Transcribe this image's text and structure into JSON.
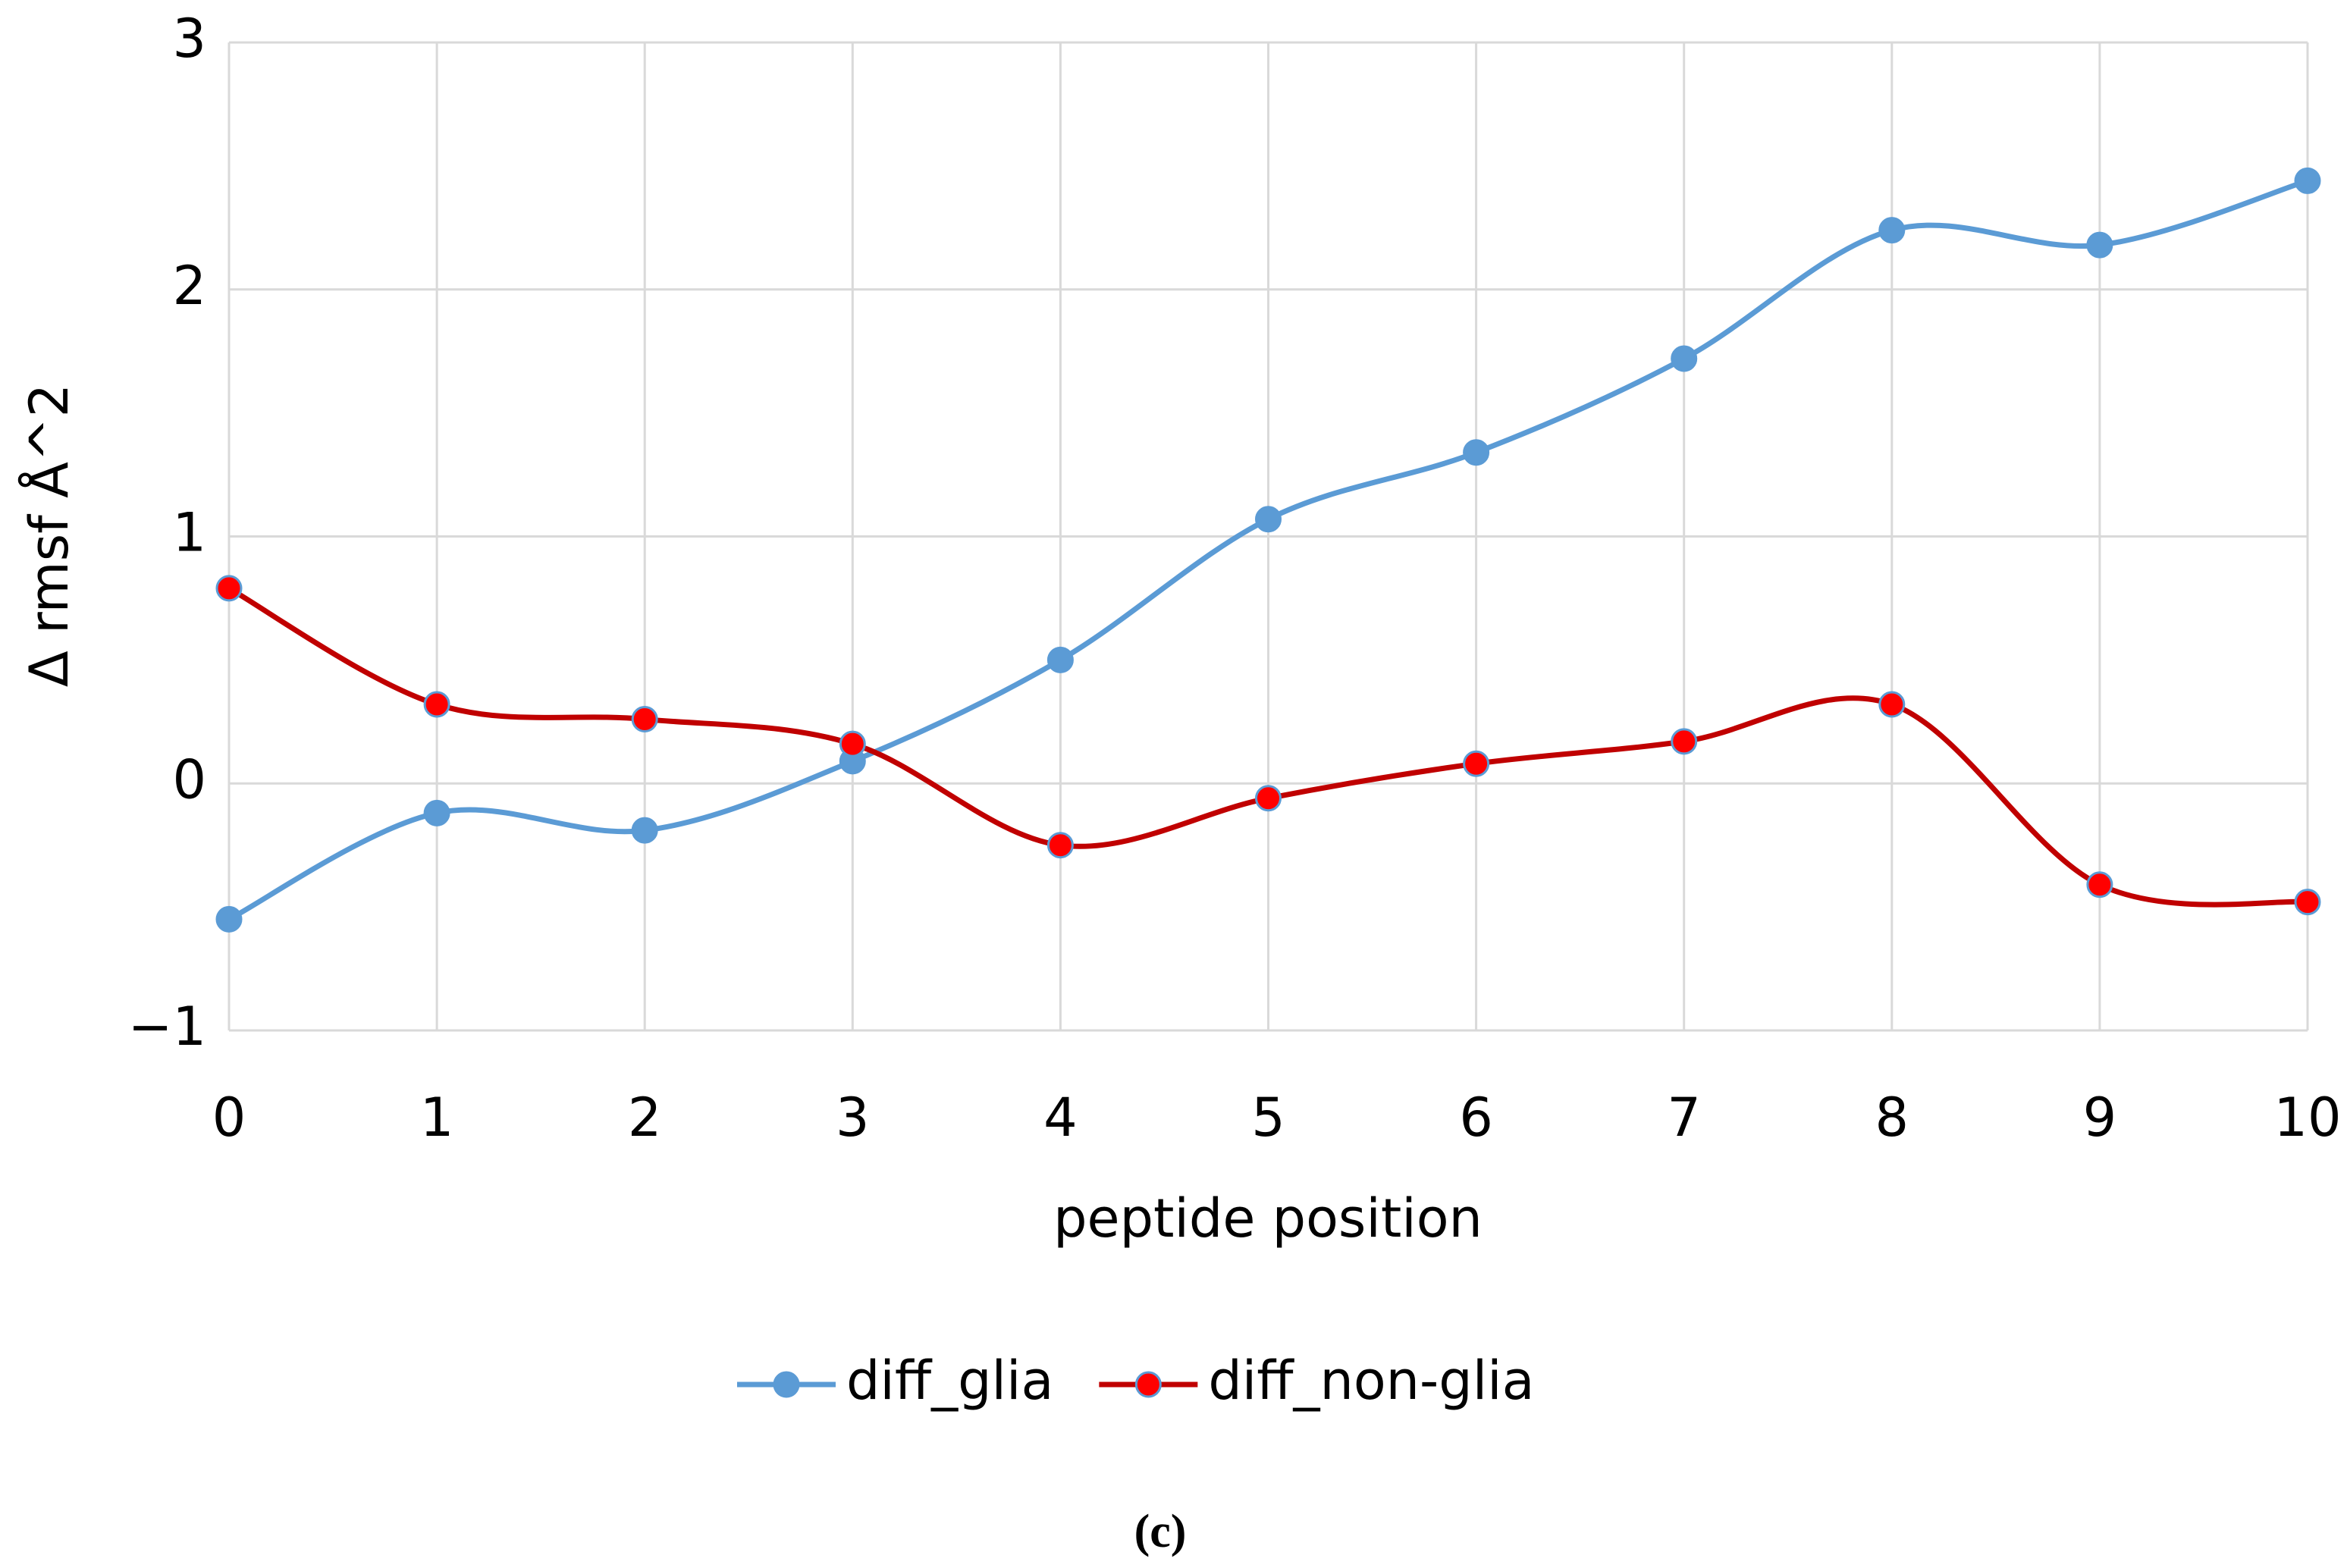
{
  "chart_data": {
    "type": "line",
    "x": [
      0,
      1,
      2,
      3,
      4,
      5,
      6,
      7,
      8,
      9,
      10
    ],
    "series": [
      {
        "name": "diff_glia",
        "color": "#5b9bd5",
        "marker_color": "#5b9bd5",
        "values": [
          -0.55,
          -0.12,
          -0.19,
          0.09,
          0.5,
          1.07,
          1.34,
          1.72,
          2.24,
          2.18,
          2.44
        ]
      },
      {
        "name": "diff_non-glia",
        "color": "#c00000",
        "marker_color": "#ff0000",
        "values": [
          0.79,
          0.32,
          0.26,
          0.16,
          -0.25,
          -0.06,
          0.08,
          0.17,
          0.32,
          -0.41,
          -0.48
        ]
      }
    ],
    "xlim": [
      0,
      10
    ],
    "xticks": [
      0,
      1,
      2,
      3,
      4,
      5,
      6,
      7,
      8,
      9,
      10
    ],
    "ylim": [
      -1,
      3
    ],
    "yticks": [
      {
        "value": -1,
        "label": "−1"
      },
      0,
      1,
      2,
      3
    ],
    "xlabel": "peptide position",
    "ylabel": "Δ rmsf Å^2",
    "grid": true,
    "smooth": true,
    "legend": "bottom",
    "caption": "(c)"
  }
}
